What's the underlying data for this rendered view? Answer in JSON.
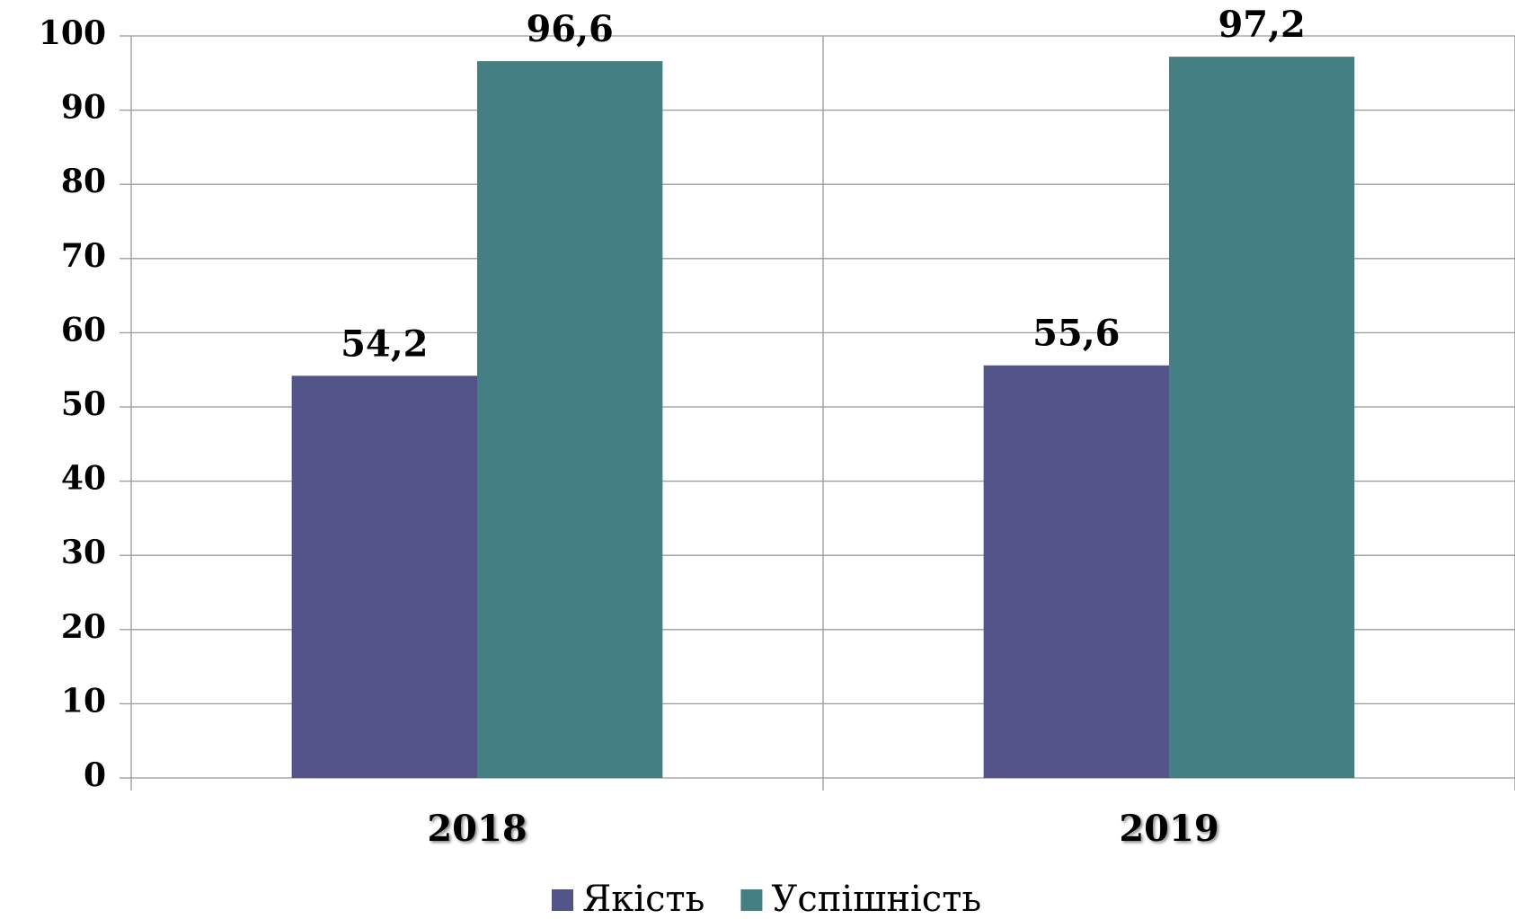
{
  "chart_data": {
    "type": "bar",
    "categories": [
      "2018",
      "2019"
    ],
    "series": [
      {
        "name": "Якість",
        "color": "#53548a",
        "values": [
          54.2,
          55.6
        ],
        "value_labels": [
          "54,2",
          "55,6"
        ]
      },
      {
        "name": "Успішність",
        "color": "#437f83",
        "values": [
          96.6,
          97.2
        ],
        "value_labels": [
          "96,6",
          "97,2"
        ]
      }
    ],
    "ylim": [
      0,
      100
    ],
    "yticks": [
      0,
      10,
      20,
      30,
      40,
      50,
      60,
      70,
      80,
      90,
      100
    ],
    "grid": true,
    "legend": "bottom"
  }
}
